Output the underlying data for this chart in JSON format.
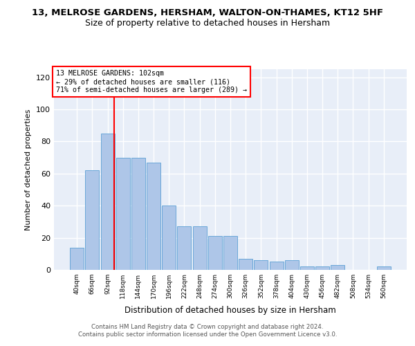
{
  "title": "13, MELROSE GARDENS, HERSHAM, WALTON-ON-THAMES, KT12 5HF",
  "subtitle": "Size of property relative to detached houses in Hersham",
  "xlabel": "Distribution of detached houses by size in Hersham",
  "ylabel": "Number of detached properties",
  "categories": [
    "40sqm",
    "66sqm",
    "92sqm",
    "118sqm",
    "144sqm",
    "170sqm",
    "196sqm",
    "222sqm",
    "248sqm",
    "274sqm",
    "300sqm",
    "326sqm",
    "352sqm",
    "378sqm",
    "404sqm",
    "430sqm",
    "456sqm",
    "482sqm",
    "508sqm",
    "534sqm",
    "560sqm"
  ],
  "values": [
    14,
    62,
    85,
    70,
    70,
    67,
    40,
    27,
    27,
    21,
    21,
    7,
    6,
    5,
    6,
    2,
    2,
    3,
    0,
    0,
    2
  ],
  "bar_color": "#aec6e8",
  "bar_edge_color": "#5a9fd4",
  "annotation_line1": "13 MELROSE GARDENS: 102sqm",
  "annotation_line2": "← 29% of detached houses are smaller (116)",
  "annotation_line3": "71% of semi-detached houses are larger (289) →",
  "annotation_box_color": "white",
  "annotation_box_edge_color": "red",
  "vline_color": "red",
  "vline_x": 2.42,
  "ylim": [
    0,
    125
  ],
  "yticks": [
    0,
    20,
    40,
    60,
    80,
    100,
    120
  ],
  "background_color": "#ffffff",
  "plot_bg_color": "#e8eef8",
  "grid_color": "white",
  "footer_line1": "Contains HM Land Registry data © Crown copyright and database right 2024.",
  "footer_line2": "Contains public sector information licensed under the Open Government Licence v3.0."
}
